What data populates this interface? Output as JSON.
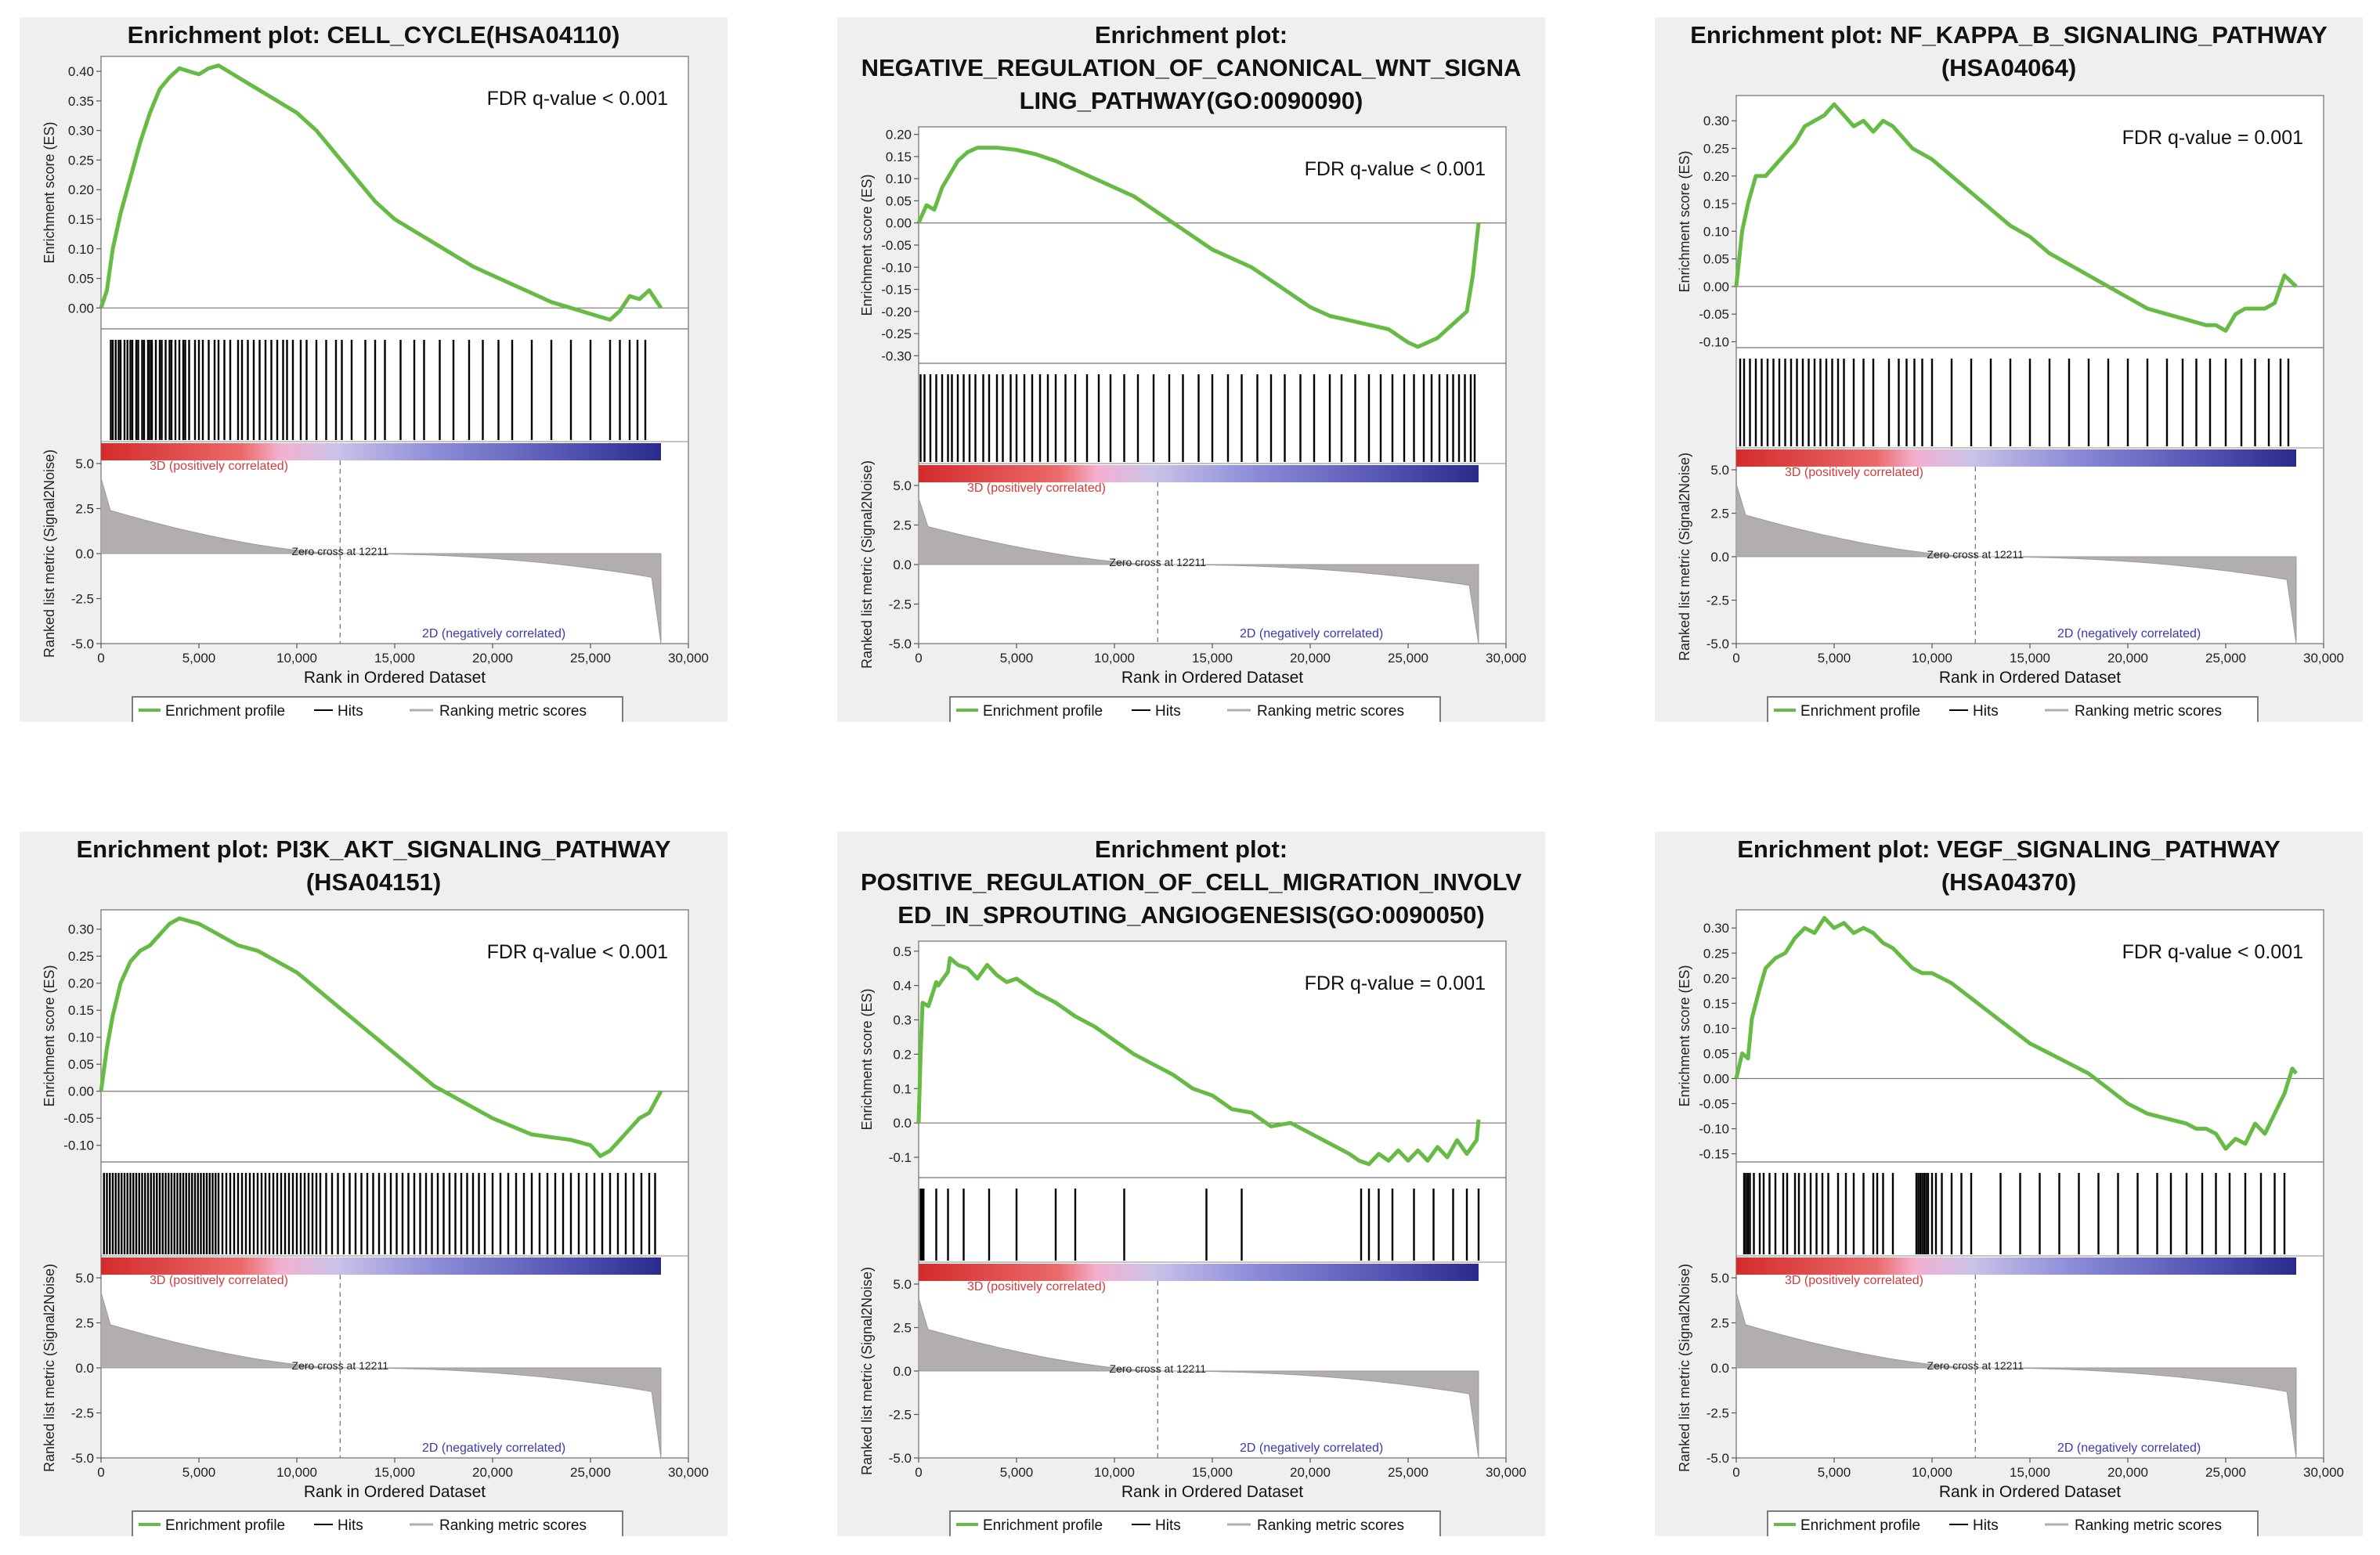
{
  "labels": {
    "ylabel_es": "Enrichment score (ES)",
    "ylabel_rank": "Ranked list metric (Signal2Noise)",
    "xlabel": "Rank in Ordered Dataset",
    "pos_label": "3D (positively correlated)",
    "neg_label": "2D (negatively correlated)",
    "zero_cross": "Zero cross at 12211",
    "legend_profile": "Enrichment profile",
    "legend_hits": "Hits",
    "legend_ranking": "Ranking metric scores"
  },
  "colors": {
    "profile": "#66bb44",
    "hits": "#000000",
    "ranking": "#b3aeae",
    "pos_text": "#d43a3a",
    "neg_text": "#3a3ab0",
    "panel_bg": "#efefef"
  },
  "chart_data": [
    {
      "type": "line",
      "title_lines": [
        "Enrichment plot: CELL_CYCLE(HSA04110)"
      ],
      "fdr": "FDR q-value < 0.001",
      "xlim": [
        0,
        30000
      ],
      "xticks": [
        "0",
        "5,000",
        "10,000",
        "15,000",
        "20,000",
        "25,000",
        "30,000"
      ],
      "yticks": [
        "0.40",
        "0.35",
        "0.30",
        "0.25",
        "0.20",
        "0.15",
        "0.10",
        "0.05",
        "0.00"
      ],
      "ylim": [
        -0.03,
        0.42
      ],
      "rank_ticks": [
        "5.0",
        "2.5",
        "0.0",
        "-2.5",
        "-5.0"
      ],
      "rank_ylim": [
        -5.0,
        5.0
      ],
      "x": [
        0,
        300,
        600,
        1000,
        1500,
        2000,
        2500,
        3000,
        3500,
        4000,
        4500,
        5000,
        5500,
        6000,
        6500,
        7000,
        8000,
        9000,
        10000,
        11000,
        12000,
        13000,
        14000,
        15000,
        16000,
        17000,
        18000,
        19000,
        20000,
        21000,
        22000,
        23000,
        24000,
        25000,
        26000,
        26500,
        27000,
        27500,
        28000,
        28600
      ],
      "es": [
        0.0,
        0.03,
        0.1,
        0.16,
        0.22,
        0.28,
        0.33,
        0.37,
        0.39,
        0.405,
        0.4,
        0.395,
        0.405,
        0.41,
        0.4,
        0.39,
        0.37,
        0.35,
        0.33,
        0.3,
        0.26,
        0.22,
        0.18,
        0.15,
        0.13,
        0.11,
        0.09,
        0.07,
        0.055,
        0.04,
        0.025,
        0.01,
        0.0,
        -0.01,
        -0.02,
        -0.005,
        0.02,
        0.015,
        0.03,
        0.0
      ],
      "hits": [
        500,
        600,
        750,
        900,
        1000,
        1200,
        1350,
        1500,
        1600,
        1800,
        1900,
        2100,
        2200,
        2400,
        2500,
        2600,
        2800,
        3000,
        3100,
        3300,
        3500,
        3600,
        3800,
        4000,
        4200,
        4300,
        4500,
        4800,
        5000,
        5200,
        5500,
        5800,
        6000,
        6300,
        6600,
        7000,
        7200,
        7500,
        7800,
        8100,
        8400,
        8700,
        9000,
        9300,
        9500,
        9800,
        10200,
        10500,
        11000,
        11500,
        12000,
        12300,
        12800,
        13500,
        14000,
        14500,
        15300,
        16000,
        16500,
        17300,
        18000,
        18800,
        19500,
        20300,
        21000,
        22000,
        23000,
        24000,
        25000,
        26000,
        26500,
        27000,
        27400,
        27800
      ]
    },
    {
      "type": "line",
      "title_lines": [
        "Enrichment plot:",
        "NEGATIVE_REGULATION_OF_CANONICAL_WNT_SIGNA",
        "LING_PATHWAY(GO:0090090)"
      ],
      "fdr": "FDR q-value < 0.001",
      "xlim": [
        0,
        30000
      ],
      "xticks": [
        "0",
        "5,000",
        "10,000",
        "15,000",
        "20,000",
        "25,000",
        "30,000"
      ],
      "yticks": [
        "0.20",
        "0.15",
        "0.10",
        "0.05",
        "0.00",
        "-0.05",
        "-0.10",
        "-0.15",
        "-0.20",
        "-0.25",
        "-0.30"
      ],
      "ylim": [
        -0.31,
        0.21
      ],
      "rank_ticks": [
        "5.0",
        "2.5",
        "0.0",
        "-2.5",
        "-5.0"
      ],
      "rank_ylim": [
        -5.0,
        5.0
      ],
      "x": [
        0,
        400,
        800,
        1200,
        1600,
        2000,
        2500,
        3000,
        4000,
        5000,
        6000,
        7000,
        8000,
        9000,
        10000,
        11000,
        12000,
        13000,
        14000,
        15000,
        16000,
        17000,
        18000,
        19000,
        20000,
        21000,
        22000,
        23000,
        24000,
        25000,
        25500,
        26000,
        26500,
        27000,
        27500,
        28000,
        28300,
        28600
      ],
      "es": [
        0.0,
        0.04,
        0.03,
        0.08,
        0.11,
        0.14,
        0.16,
        0.17,
        0.17,
        0.165,
        0.155,
        0.14,
        0.12,
        0.1,
        0.08,
        0.06,
        0.03,
        0.0,
        -0.03,
        -0.06,
        -0.08,
        -0.1,
        -0.13,
        -0.16,
        -0.19,
        -0.21,
        -0.22,
        -0.23,
        -0.24,
        -0.27,
        -0.28,
        -0.27,
        -0.26,
        -0.24,
        -0.22,
        -0.2,
        -0.12,
        0.0
      ],
      "hits": [
        100,
        300,
        600,
        900,
        1200,
        1500,
        1700,
        2000,
        2300,
        2600,
        2900,
        3300,
        3600,
        4000,
        4300,
        4700,
        5000,
        5400,
        5800,
        6200,
        6600,
        7000,
        7500,
        8000,
        8600,
        9200,
        9800,
        10500,
        11200,
        12000,
        12800,
        13500,
        14300,
        15000,
        15800,
        16500,
        17300,
        18000,
        18700,
        19500,
        20200,
        21000,
        21600,
        22300,
        23000,
        23600,
        24200,
        24800,
        25300,
        25800,
        26200,
        26600,
        27000,
        27300,
        27600,
        27900,
        28200,
        28400
      ]
    },
    {
      "type": "line",
      "title_lines": [
        "Enrichment plot: NF_KAPPA_B_SIGNALING_PATHWAY",
        "(HSA04064)"
      ],
      "fdr": "FDR q-value = 0.001",
      "xlim": [
        0,
        30000
      ],
      "xticks": [
        "0",
        "5,000",
        "10,000",
        "15,000",
        "20,000",
        "25,000",
        "30,000"
      ],
      "yticks": [
        "0.30",
        "0.25",
        "0.20",
        "0.15",
        "0.10",
        "0.05",
        "0.00",
        "-0.05",
        "-0.10"
      ],
      "ylim": [
        -0.105,
        0.34
      ],
      "rank_ticks": [
        "5.0",
        "2.5",
        "0.0",
        "-2.5",
        "-5.0"
      ],
      "rank_ylim": [
        -5.0,
        5.0
      ],
      "x": [
        0,
        300,
        600,
        1000,
        1500,
        2000,
        2500,
        3000,
        3500,
        4000,
        4500,
        5000,
        5500,
        6000,
        6500,
        7000,
        7500,
        8000,
        8500,
        9000,
        10000,
        11000,
        12000,
        13000,
        14000,
        15000,
        16000,
        17000,
        18000,
        19000,
        20000,
        21000,
        22000,
        23000,
        24000,
        24500,
        25000,
        25500,
        26000,
        27000,
        27500,
        28000,
        28600
      ],
      "es": [
        0.0,
        0.1,
        0.15,
        0.2,
        0.2,
        0.22,
        0.24,
        0.26,
        0.29,
        0.3,
        0.31,
        0.33,
        0.31,
        0.29,
        0.3,
        0.28,
        0.3,
        0.29,
        0.27,
        0.25,
        0.23,
        0.2,
        0.17,
        0.14,
        0.11,
        0.09,
        0.06,
        0.04,
        0.02,
        0.0,
        -0.02,
        -0.04,
        -0.05,
        -0.06,
        -0.07,
        -0.07,
        -0.08,
        -0.05,
        -0.04,
        -0.04,
        -0.03,
        0.02,
        0.0
      ],
      "hits": [
        200,
        400,
        700,
        1000,
        1300,
        1600,
        1900,
        2200,
        2500,
        2800,
        3100,
        3400,
        3700,
        4000,
        4300,
        4600,
        4900,
        5200,
        5500,
        6000,
        6500,
        7000,
        7800,
        8300,
        8700,
        9100,
        9500,
        10000,
        11000,
        12000,
        13000,
        14000,
        15000,
        16000,
        17000,
        18000,
        19000,
        20000,
        21000,
        22000,
        22800,
        23500,
        24200,
        25000,
        25800,
        26500,
        27200,
        27800,
        28200
      ]
    },
    {
      "type": "line",
      "title_lines": [
        "Enrichment plot: PI3K_AKT_SIGNALING_PATHWAY",
        "(HSA04151)"
      ],
      "fdr": "FDR q-value < 0.001",
      "xlim": [
        0,
        30000
      ],
      "xticks": [
        "0",
        "5,000",
        "10,000",
        "15,000",
        "20,000",
        "25,000",
        "30,000"
      ],
      "yticks": [
        "0.30",
        "0.25",
        "0.20",
        "0.15",
        "0.10",
        "0.05",
        "0.00",
        "-0.05",
        "-0.10"
      ],
      "ylim": [
        -0.125,
        0.33
      ],
      "rank_ticks": [
        "5.0",
        "2.5",
        "0.0",
        "-2.5",
        "-5.0"
      ],
      "rank_ylim": [
        -5.0,
        5.0
      ],
      "x": [
        0,
        300,
        600,
        1000,
        1500,
        2000,
        2500,
        3000,
        3500,
        4000,
        4500,
        5000,
        6000,
        7000,
        8000,
        9000,
        10000,
        11000,
        12000,
        13000,
        14000,
        15000,
        16000,
        17000,
        18000,
        19000,
        20000,
        21000,
        22000,
        23000,
        24000,
        25000,
        25500,
        26000,
        26500,
        27000,
        27500,
        28000,
        28600
      ],
      "es": [
        0.0,
        0.08,
        0.14,
        0.2,
        0.24,
        0.26,
        0.27,
        0.29,
        0.31,
        0.32,
        0.315,
        0.31,
        0.29,
        0.27,
        0.26,
        0.24,
        0.22,
        0.19,
        0.16,
        0.13,
        0.1,
        0.07,
        0.04,
        0.01,
        -0.01,
        -0.03,
        -0.05,
        -0.065,
        -0.08,
        -0.085,
        -0.09,
        -0.1,
        -0.12,
        -0.11,
        -0.09,
        -0.07,
        -0.05,
        -0.04,
        0.0
      ],
      "hits": [
        150,
        300,
        450,
        600,
        750,
        900,
        1050,
        1200,
        1350,
        1500,
        1650,
        1800,
        1950,
        2100,
        2250,
        2400,
        2550,
        2700,
        2850,
        3000,
        3150,
        3300,
        3450,
        3600,
        3750,
        3900,
        4050,
        4200,
        4350,
        4500,
        4650,
        4800,
        4950,
        5100,
        5250,
        5400,
        5550,
        5700,
        5850,
        6000,
        6200,
        6400,
        6600,
        6800,
        7000,
        7200,
        7400,
        7600,
        7800,
        8000,
        8200,
        8400,
        8600,
        8800,
        9000,
        9200,
        9400,
        9600,
        9800,
        10000,
        10200,
        10400,
        10600,
        10800,
        11000,
        11200,
        11500,
        11800,
        12100,
        12400,
        12700,
        13000,
        13300,
        13600,
        13900,
        14200,
        14500,
        14800,
        15100,
        15400,
        15700,
        16000,
        16300,
        16600,
        16900,
        17200,
        17500,
        17800,
        18100,
        18400,
        18700,
        19000,
        19300,
        19600,
        20000,
        20400,
        20800,
        21200,
        21600,
        22000,
        22400,
        22800,
        23200,
        23600,
        24000,
        24400,
        24800,
        25200,
        25600,
        26000,
        26400,
        26800,
        27200,
        27600,
        28000,
        28300
      ]
    },
    {
      "type": "line",
      "title_lines": [
        "Enrichment plot:",
        "POSITIVE_REGULATION_OF_CELL_MIGRATION_INVOLV",
        "ED_IN_SPROUTING_ANGIOGENESIS(GO:0090050)"
      ],
      "fdr": "FDR q-value = 0.001",
      "xlim": [
        0,
        30000
      ],
      "xticks": [
        "0",
        "5,000",
        "10,000",
        "15,000",
        "20,000",
        "25,000",
        "30,000"
      ],
      "yticks": [
        "0.5",
        "0.4",
        "0.3",
        "0.2",
        "0.1",
        "0.0",
        "-0.1"
      ],
      "ylim": [
        -0.15,
        0.52
      ],
      "rank_ticks": [
        "5.0",
        "2.5",
        "0.0",
        "-2.5",
        "-5.0"
      ],
      "rank_ylim": [
        -5.0,
        5.0
      ],
      "x": [
        0,
        100,
        200,
        500,
        900,
        1000,
        1500,
        1600,
        2000,
        2500,
        3000,
        3500,
        4000,
        4500,
        5000,
        6000,
        7000,
        8000,
        9000,
        10000,
        11000,
        12000,
        13000,
        14000,
        15000,
        16000,
        17000,
        18000,
        19000,
        20000,
        21000,
        22000,
        22500,
        23000,
        23500,
        24000,
        24500,
        25000,
        25500,
        26000,
        26500,
        27000,
        27500,
        28000,
        28500,
        28600
      ],
      "es": [
        0.0,
        0.2,
        0.35,
        0.34,
        0.41,
        0.4,
        0.44,
        0.48,
        0.46,
        0.45,
        0.42,
        0.46,
        0.43,
        0.41,
        0.42,
        0.38,
        0.35,
        0.31,
        0.28,
        0.24,
        0.2,
        0.17,
        0.14,
        0.1,
        0.08,
        0.04,
        0.03,
        -0.01,
        0.0,
        -0.03,
        -0.06,
        -0.09,
        -0.11,
        -0.12,
        -0.09,
        -0.11,
        -0.08,
        -0.11,
        -0.08,
        -0.11,
        -0.07,
        -0.1,
        -0.05,
        -0.09,
        -0.05,
        0.01
      ],
      "hits": [
        100,
        150,
        200,
        250,
        900,
        1500,
        2300,
        3600,
        5000,
        7000,
        8000,
        10500,
        14700,
        16500,
        22600,
        23000,
        23500,
        24200,
        25300,
        26300,
        27300,
        28000,
        28600
      ]
    },
    {
      "type": "line",
      "title_lines": [
        "Enrichment plot: VEGF_SIGNALING_PATHWAY",
        "(HSA04370)"
      ],
      "fdr": "FDR q-value < 0.001",
      "xlim": [
        0,
        30000
      ],
      "xticks": [
        "0",
        "5,000",
        "10,000",
        "15,000",
        "20,000",
        "25,000",
        "30,000"
      ],
      "yticks": [
        "0.30",
        "0.25",
        "0.20",
        "0.15",
        "0.10",
        "0.05",
        "0.00",
        "-0.05",
        "-0.10",
        "-0.15"
      ],
      "ylim": [
        -0.16,
        0.33
      ],
      "rank_ticks": [
        "5.0",
        "2.5",
        "0.0",
        "-2.5",
        "-5.0"
      ],
      "rank_ylim": [
        -5.0,
        5.0
      ],
      "x": [
        0,
        300,
        600,
        800,
        1200,
        1500,
        2000,
        2500,
        3000,
        3500,
        4000,
        4500,
        5000,
        5500,
        6000,
        6500,
        7000,
        7500,
        8000,
        8500,
        9000,
        9500,
        10000,
        11000,
        12000,
        13000,
        14000,
        15000,
        16000,
        17000,
        18000,
        19000,
        20000,
        21000,
        22000,
        23000,
        23500,
        24000,
        24500,
        25000,
        25500,
        26000,
        26500,
        27000,
        27500,
        28000,
        28400,
        28600
      ],
      "es": [
        0.0,
        0.05,
        0.04,
        0.12,
        0.18,
        0.22,
        0.24,
        0.25,
        0.28,
        0.3,
        0.29,
        0.32,
        0.3,
        0.31,
        0.29,
        0.3,
        0.29,
        0.27,
        0.26,
        0.24,
        0.22,
        0.21,
        0.21,
        0.19,
        0.16,
        0.13,
        0.1,
        0.07,
        0.05,
        0.03,
        0.01,
        -0.02,
        -0.05,
        -0.07,
        -0.08,
        -0.09,
        -0.1,
        -0.1,
        -0.11,
        -0.14,
        -0.12,
        -0.13,
        -0.09,
        -0.11,
        -0.07,
        -0.03,
        0.02,
        0.01
      ],
      "hits": [
        400,
        500,
        600,
        700,
        900,
        1200,
        1400,
        1700,
        2000,
        2400,
        2600,
        3000,
        3200,
        3500,
        3800,
        4100,
        4400,
        4700,
        5200,
        5600,
        6000,
        6500,
        7000,
        7200,
        7500,
        8000,
        9200,
        9300,
        9400,
        9500,
        9600,
        9700,
        9800,
        10000,
        10200,
        10500,
        11000,
        11500,
        12000,
        13500,
        14500,
        15500,
        16500,
        17500,
        18500,
        19500,
        20500,
        21500,
        22200,
        23000,
        23800,
        24500,
        25200,
        26000,
        26800,
        27500,
        28000
      ]
    }
  ]
}
